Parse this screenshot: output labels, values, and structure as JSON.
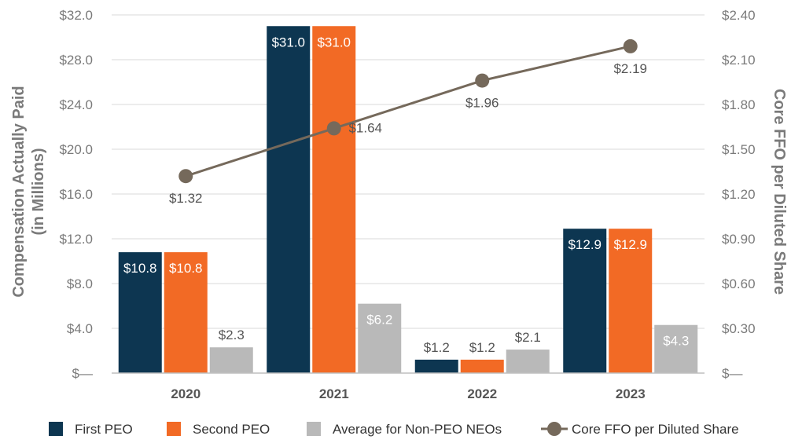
{
  "chart_data": {
    "type": "bar",
    "categories": [
      "2020",
      "2021",
      "2022",
      "2023"
    ],
    "ylabel_lines": [
      "Compensation Actually Paid",
      "(in Millions)"
    ],
    "y2label": "Core FFO per Diluted Share",
    "ylim": [
      0,
      32
    ],
    "y2lim": [
      0,
      2.4
    ],
    "y_ticks": [
      "$—",
      "$4.0",
      "$8.0",
      "$12.0",
      "$16.0",
      "$20.0",
      "$24.0",
      "$28.0",
      "$32.0"
    ],
    "y2_ticks": [
      "$—",
      "$0.30",
      "$0.60",
      "$0.90",
      "$1.20",
      "$1.50",
      "$1.80",
      "$2.10",
      "$2.40"
    ],
    "grid": true,
    "legend_position": "bottom",
    "series": [
      {
        "name": "First PEO",
        "color": "#0d3651",
        "values": [
          10.8,
          31.0,
          1.2,
          12.9
        ],
        "labels": [
          "$10.8",
          "$31.0",
          "$1.2",
          "$12.9"
        ],
        "label_inside": [
          true,
          true,
          false,
          true
        ]
      },
      {
        "name": "Second PEO",
        "color": "#f26a25",
        "values": [
          10.8,
          31.0,
          1.2,
          12.9
        ],
        "labels": [
          "$10.8",
          "$31.0",
          "$1.2",
          "$12.9"
        ],
        "label_inside": [
          true,
          true,
          false,
          true
        ]
      },
      {
        "name": "Average for Non-PEO NEOs",
        "color": "#b9b9b9",
        "values": [
          2.3,
          6.2,
          2.1,
          4.3
        ],
        "labels": [
          "$2.3",
          "$6.2",
          "$2.1",
          "$4.3"
        ],
        "label_inside": [
          false,
          true,
          false,
          true
        ]
      }
    ],
    "line_series": {
      "name": "Core FFO per Diluted Share",
      "color": "#75695b",
      "axis": "right",
      "values": [
        1.32,
        1.64,
        1.96,
        2.19
      ],
      "labels": [
        "$1.32",
        "$1.64",
        "$1.96",
        "$2.19"
      ]
    }
  }
}
